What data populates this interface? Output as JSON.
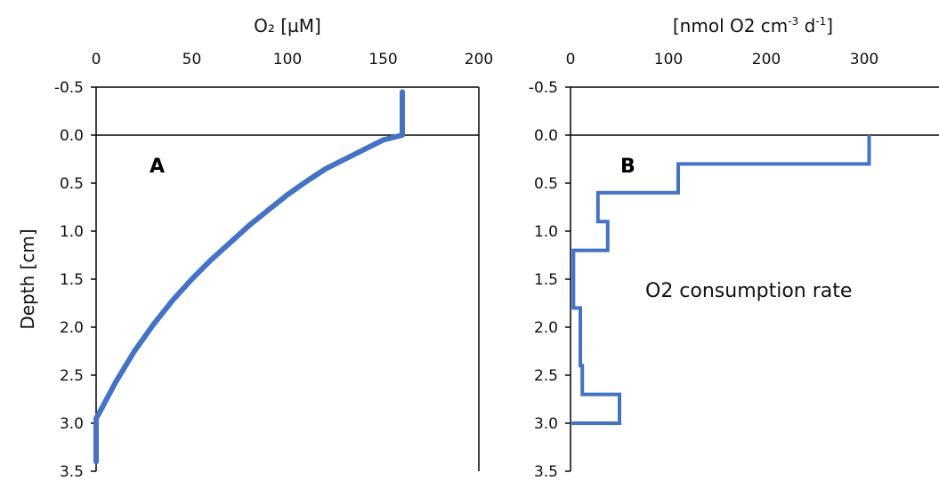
{
  "chart_data": [
    {
      "type": "line",
      "panel_label": "A",
      "xlabel": "O₂ [µM]",
      "ylabel": "Depth [cm]",
      "xlim": [
        0,
        200
      ],
      "ylim": [
        3.5,
        -0.5
      ],
      "x_ticks": [
        "0",
        "50",
        "100",
        "150",
        "200"
      ],
      "y_ticks": [
        "-0.5",
        "0.0",
        "0.5",
        "1.0",
        "1.5",
        "2.0",
        "2.5",
        "3.0",
        "3.5"
      ],
      "x_axis_position": "top",
      "series": [
        {
          "color": "#4472c4",
          "points": [
            [
              160,
              -0.45
            ],
            [
              160,
              -0.3
            ],
            [
              160,
              -0.1
            ],
            [
              160,
              0.0
            ],
            [
              150,
              0.05
            ],
            [
              140,
              0.15
            ],
            [
              130,
              0.25
            ],
            [
              120,
              0.35
            ],
            [
              110,
              0.48
            ],
            [
              100,
              0.62
            ],
            [
              90,
              0.78
            ],
            [
              80,
              0.94
            ],
            [
              70,
              1.12
            ],
            [
              60,
              1.3
            ],
            [
              50,
              1.5
            ],
            [
              40,
              1.72
            ],
            [
              30,
              1.97
            ],
            [
              20,
              2.25
            ],
            [
              10,
              2.58
            ],
            [
              2,
              2.88
            ],
            [
              0,
              2.95
            ],
            [
              0,
              3.2
            ],
            [
              0,
              3.4
            ]
          ]
        }
      ]
    },
    {
      "type": "line",
      "panel_label": "B",
      "xlabel": "[nmol O2 cm-3 d-1]",
      "xlabel_parts": {
        "base": "[nmol O2 cm",
        "sup1": "-3",
        "mid": " d",
        "sup2": "-1",
        "end": "]"
      },
      "ylabel": "",
      "xlim": [
        0,
        350
      ],
      "ylim": [
        3.5,
        -0.5
      ],
      "x_ticks": [
        "0",
        "100",
        "200",
        "300"
      ],
      "y_ticks": [
        "-0.5",
        "0.0",
        "0.5",
        "1.0",
        "1.5",
        "2.0",
        "2.5",
        "3.0",
        "3.5"
      ],
      "x_axis_position": "top",
      "annotation": "O2 consumption rate",
      "series": [
        {
          "color": "#4472c4",
          "steps": [
            {
              "from": 0.0,
              "to": 0.3,
              "value": 305
            },
            {
              "from": 0.3,
              "to": 0.6,
              "value": 110
            },
            {
              "from": 0.6,
              "to": 0.9,
              "value": 28
            },
            {
              "from": 0.9,
              "to": 1.2,
              "value": 38
            },
            {
              "from": 1.2,
              "to": 1.8,
              "value": 3
            },
            {
              "from": 1.8,
              "to": 2.4,
              "value": 10
            },
            {
              "from": 2.4,
              "to": 2.7,
              "value": 12
            },
            {
              "from": 2.7,
              "to": 3.0,
              "value": 50
            }
          ],
          "end_value": 0
        }
      ]
    }
  ]
}
